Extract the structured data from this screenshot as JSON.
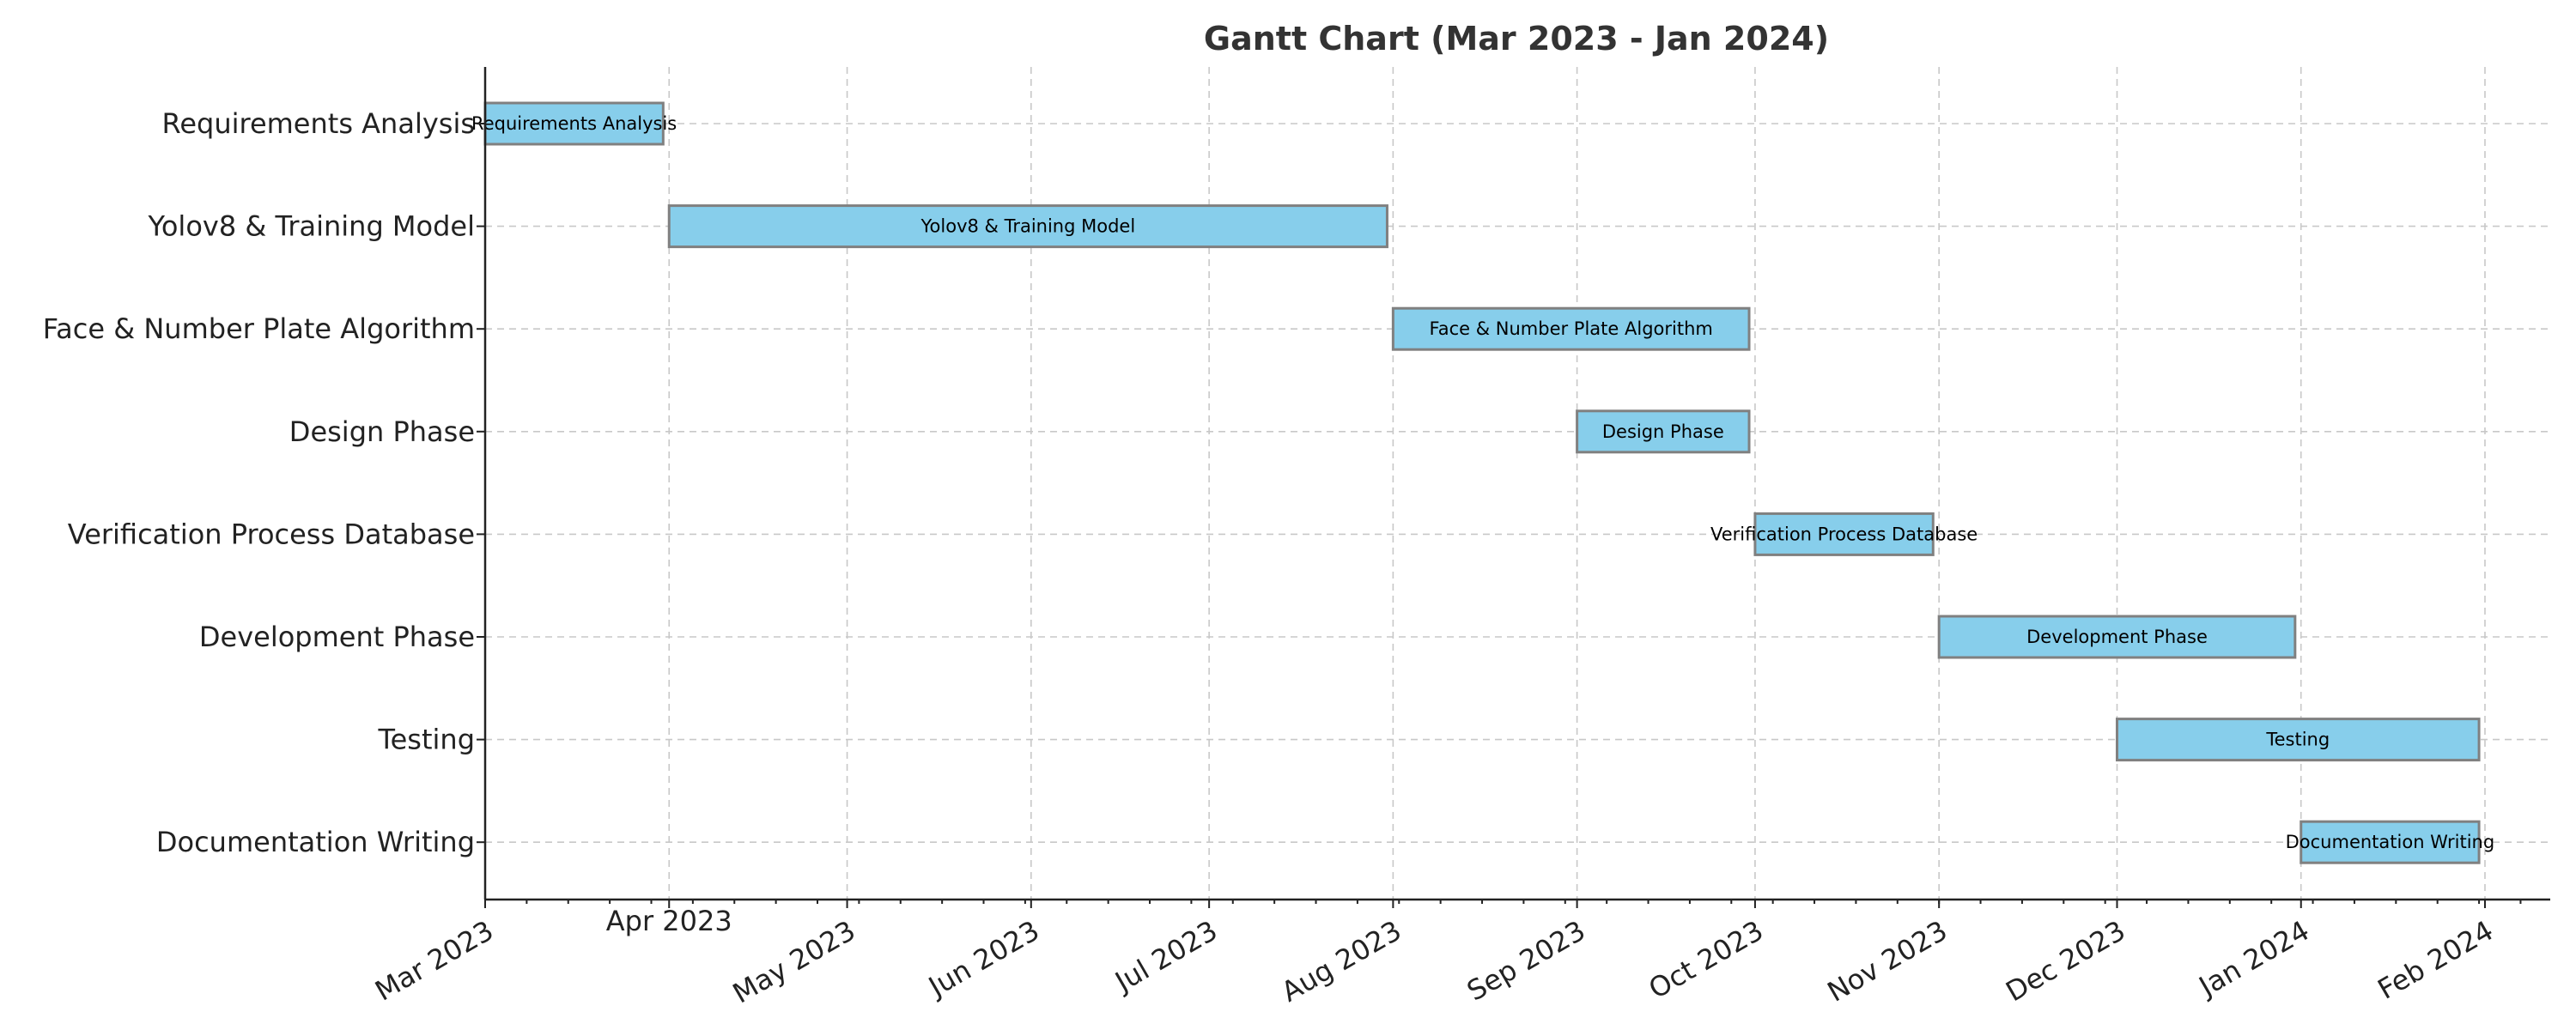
{
  "chart_data": {
    "type": "gantt",
    "title": "Gantt Chart (Mar 2023 - Jan 2024)",
    "xlabel": "",
    "ylabel": "",
    "x_range": [
      "2023-03-01",
      "2024-02-12"
    ],
    "x_ticks": [
      {
        "date": "2023-03-01",
        "label": "Mar 2023"
      },
      {
        "date": "2023-04-01",
        "label": "Apr 2023"
      },
      {
        "date": "2023-05-01",
        "label": "May 2023"
      },
      {
        "date": "2023-06-01",
        "label": "Jun 2023"
      },
      {
        "date": "2023-07-01",
        "label": "Jul 2023"
      },
      {
        "date": "2023-08-01",
        "label": "Aug 2023"
      },
      {
        "date": "2023-09-01",
        "label": "Sep 2023"
      },
      {
        "date": "2023-10-01",
        "label": "Oct 2023"
      },
      {
        "date": "2023-11-01",
        "label": "Nov 2023"
      },
      {
        "date": "2023-12-01",
        "label": "Dec 2023"
      },
      {
        "date": "2024-01-01",
        "label": "Jan 2024"
      },
      {
        "date": "2024-02-01",
        "label": "Feb 2024"
      }
    ],
    "grid": true,
    "bar_color": "#87ceeb",
    "bar_edge_color": "#808080",
    "tasks": [
      {
        "name": "Requirements Analysis",
        "start": "2023-03-01",
        "end": "2023-03-31"
      },
      {
        "name": "Yolov8 & Training Model",
        "start": "2023-04-01",
        "end": "2023-07-31"
      },
      {
        "name": "Face & Number Plate Algorithm",
        "start": "2023-08-01",
        "end": "2023-09-30"
      },
      {
        "name": "Design Phase",
        "start": "2023-09-01",
        "end": "2023-09-30"
      },
      {
        "name": "Verification Process Database",
        "start": "2023-10-01",
        "end": "2023-10-31"
      },
      {
        "name": "Development Phase",
        "start": "2023-11-01",
        "end": "2023-12-31"
      },
      {
        "name": "Testing",
        "start": "2023-12-01",
        "end": "2024-01-31"
      },
      {
        "name": "Documentation Writing",
        "start": "2024-01-01",
        "end": "2024-01-31"
      }
    ]
  }
}
